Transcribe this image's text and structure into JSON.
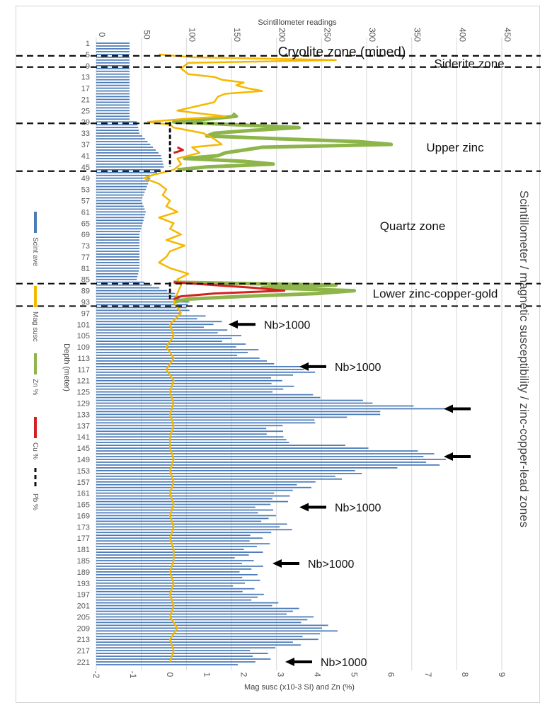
{
  "chart_data": {
    "type": "bar-line-combo",
    "top_axis": {
      "title": "Scintillometer readings",
      "ticks": [
        0,
        50,
        100,
        150,
        200,
        250,
        300,
        350,
        400,
        450
      ],
      "range": [
        0,
        450
      ]
    },
    "bottom_axis": {
      "title": "Mag susc (x10-3 SI) and Zn (%)",
      "ticks": [
        -2,
        -1,
        0,
        1,
        2,
        3,
        4,
        5,
        6,
        7,
        8,
        9
      ],
      "range": [
        -2,
        9
      ]
    },
    "depth_axis": {
      "title": "Depth (meter)",
      "tick_labels": [
        1,
        5,
        9,
        13,
        17,
        21,
        25,
        29,
        33,
        37,
        41,
        45,
        49,
        53,
        57,
        61,
        65,
        69,
        73,
        77,
        81,
        85,
        89,
        93,
        97,
        101,
        105,
        109,
        113,
        117,
        121,
        125,
        129,
        133,
        137,
        141,
        145,
        149,
        153,
        157,
        161,
        165,
        169,
        173,
        177,
        181,
        185,
        189,
        193,
        197,
        201,
        205,
        209,
        213,
        217,
        221
      ],
      "range": [
        1,
        222
      ]
    },
    "legend": [
      {
        "name": "Scint ave",
        "color": "#4a7ab8",
        "style": "bar"
      },
      {
        "name": "Mag susc",
        "color": "#f5b800",
        "style": "line"
      },
      {
        "name": "Zn %",
        "color": "#8db54a",
        "style": "line"
      },
      {
        "name": "Cu %",
        "color": "#d42020",
        "style": "line"
      },
      {
        "name": "Pb %",
        "color": "#111111",
        "style": "dash"
      }
    ],
    "right_title": "Scintillometer / magnetic susceptibility / zinc-copper-lead zones",
    "zones": [
      {
        "label": "Cryolite zone (mined)",
        "from": 1,
        "to": 5
      },
      {
        "label": "Siderite zone",
        "from": 5,
        "to": 9
      },
      {
        "label": "Upper zinc",
        "from": 29,
        "to": 46
      },
      {
        "label": "Quartz zone",
        "from": 46,
        "to": 86
      },
      {
        "label": "Lower zinc-copper-gold",
        "from": 86,
        "to": 94
      }
    ],
    "zone_boundaries": [
      5,
      9,
      29,
      46,
      86,
      94
    ],
    "nb_annotations": [
      {
        "depth": 101,
        "label": "Nb>1000"
      },
      {
        "depth": 116,
        "label": "Nb>1000"
      },
      {
        "depth": 131,
        "label": ""
      },
      {
        "depth": 148,
        "label": ""
      },
      {
        "depth": 166,
        "label": "Nb>1000"
      },
      {
        "depth": 186,
        "label": "Nb>1000"
      },
      {
        "depth": 221,
        "label": "Nb>1000"
      }
    ],
    "scint_ave": {
      "units": "readings",
      "knots": [
        [
          1,
          37
        ],
        [
          28,
          37
        ],
        [
          29,
          45
        ],
        [
          33,
          48
        ],
        [
          37,
          60
        ],
        [
          41,
          72
        ],
        [
          45,
          75
        ],
        [
          49,
          60
        ],
        [
          57,
          50
        ],
        [
          61,
          55
        ],
        [
          69,
          48
        ],
        [
          81,
          48
        ],
        [
          85,
          45
        ],
        [
          88,
          70
        ],
        [
          92,
          105
        ],
        [
          95,
          100
        ],
        [
          97,
          110
        ],
        [
          101,
          130
        ],
        [
          105,
          145
        ],
        [
          109,
          160
        ],
        [
          113,
          170
        ],
        [
          115,
          215
        ],
        [
          117,
          240
        ],
        [
          121,
          200
        ],
        [
          125,
          210
        ],
        [
          127,
          255
        ],
        [
          129,
          305
        ],
        [
          130,
          365
        ],
        [
          131,
          385
        ],
        [
          132,
          320
        ],
        [
          134,
          275
        ],
        [
          137,
          210
        ],
        [
          141,
          195
        ],
        [
          143,
          230
        ],
        [
          145,
          310
        ],
        [
          147,
          375
        ],
        [
          149,
          380
        ],
        [
          151,
          365
        ],
        [
          153,
          300
        ],
        [
          157,
          240
        ],
        [
          161,
          215
        ],
        [
          165,
          195
        ],
        [
          169,
          185
        ],
        [
          173,
          210
        ],
        [
          177,
          175
        ],
        [
          181,
          175
        ],
        [
          185,
          170
        ],
        [
          189,
          175
        ],
        [
          193,
          165
        ],
        [
          197,
          170
        ],
        [
          201,
          200
        ],
        [
          205,
          230
        ],
        [
          209,
          260
        ],
        [
          213,
          240
        ],
        [
          217,
          185
        ],
        [
          221,
          175
        ],
        [
          222,
          170
        ]
      ]
    },
    "mag_susc": {
      "units": "x10-3 SI",
      "points": [
        [
          5,
          -0.3
        ],
        [
          6,
          0.6
        ],
        [
          7,
          4.5
        ],
        [
          8,
          0.5
        ],
        [
          10,
          0.3
        ],
        [
          12,
          0.5
        ],
        [
          13,
          1.2
        ],
        [
          14,
          1.4
        ],
        [
          15,
          2.0
        ],
        [
          16,
          1.8
        ],
        [
          17,
          2.1
        ],
        [
          18,
          2.5
        ],
        [
          19,
          1.5
        ],
        [
          20,
          1.3
        ],
        [
          22,
          1.2
        ],
        [
          25,
          0.2
        ],
        [
          26,
          0.8
        ],
        [
          27,
          1.5
        ],
        [
          28,
          0.3
        ],
        [
          29,
          -0.6
        ],
        [
          30,
          0.0
        ],
        [
          31,
          0.1
        ],
        [
          33,
          0.9
        ],
        [
          35,
          1.2
        ],
        [
          37,
          1.4
        ],
        [
          38,
          0.6
        ],
        [
          40,
          0.8
        ],
        [
          42,
          0.2
        ],
        [
          44,
          0.3
        ],
        [
          46,
          0.1
        ],
        [
          47,
          -0.2
        ],
        [
          48,
          -0.5
        ],
        [
          49,
          -0.7
        ],
        [
          51,
          -0.3
        ],
        [
          53,
          -0.1
        ],
        [
          55,
          -0.2
        ],
        [
          57,
          0.0
        ],
        [
          59,
          -0.1
        ],
        [
          61,
          0.2
        ],
        [
          63,
          -0.3
        ],
        [
          65,
          0.1
        ],
        [
          67,
          0.0
        ],
        [
          69,
          0.3
        ],
        [
          71,
          -0.1
        ],
        [
          73,
          0.4
        ],
        [
          75,
          0.0
        ],
        [
          77,
          -0.1
        ],
        [
          79,
          -0.3
        ],
        [
          81,
          0.0
        ],
        [
          83,
          0.5
        ],
        [
          85,
          0.2
        ],
        [
          87,
          0.3
        ],
        [
          90,
          0.2
        ],
        [
          93,
          0.1
        ],
        [
          97,
          0.3
        ],
        [
          101,
          0.0
        ],
        [
          105,
          0.1
        ],
        [
          109,
          -0.1
        ],
        [
          113,
          0.1
        ],
        [
          117,
          -0.1
        ],
        [
          121,
          0.1
        ],
        [
          125,
          0.0
        ],
        [
          129,
          0.1
        ],
        [
          133,
          0.0
        ],
        [
          137,
          0.1
        ],
        [
          141,
          0.0
        ],
        [
          145,
          0.0
        ],
        [
          149,
          0.1
        ],
        [
          153,
          0.0
        ],
        [
          157,
          0.1
        ],
        [
          161,
          0.0
        ],
        [
          165,
          0.1
        ],
        [
          169,
          0.0
        ],
        [
          173,
          0.1
        ],
        [
          177,
          0.0
        ],
        [
          181,
          0.1
        ],
        [
          185,
          0.1
        ],
        [
          189,
          0.0
        ],
        [
          193,
          0.1
        ],
        [
          197,
          0.0
        ],
        [
          201,
          0.1
        ],
        [
          205,
          0.0
        ],
        [
          209,
          0.2
        ],
        [
          213,
          0.0
        ],
        [
          217,
          0.1
        ],
        [
          221,
          0.0
        ]
      ]
    },
    "zn_pct": {
      "units": "%",
      "points": [
        [
          26,
          1.7
        ],
        [
          27,
          1.8
        ],
        [
          28,
          1.0
        ],
        [
          29,
          0.1
        ],
        [
          30,
          1.8
        ],
        [
          31,
          3.5
        ],
        [
          32,
          2.2
        ],
        [
          33,
          1.2
        ],
        [
          34,
          1.0
        ],
        [
          35,
          3.0
        ],
        [
          36,
          5.1
        ],
        [
          37,
          6.0
        ],
        [
          38,
          2.5
        ],
        [
          39,
          2.0
        ],
        [
          40,
          1.5
        ],
        [
          41,
          1.3
        ],
        [
          42,
          0.4
        ],
        [
          43,
          2.0
        ],
        [
          44,
          2.8
        ],
        [
          45,
          1.0
        ],
        [
          46,
          0.2
        ],
        [
          86,
          0.1
        ],
        [
          87,
          4.5
        ],
        [
          88,
          2.5
        ],
        [
          89,
          5.0
        ],
        [
          90,
          4.0
        ],
        [
          91,
          2.0
        ],
        [
          92,
          0.5
        ],
        [
          93,
          0.1
        ]
      ]
    },
    "cu_pct": {
      "units": "%",
      "points": [
        [
          38,
          0.2
        ],
        [
          39,
          0.35
        ],
        [
          40,
          0.1
        ],
        [
          86,
          0.1
        ],
        [
          87,
          1.2
        ],
        [
          88,
          2.3
        ],
        [
          89,
          3.1
        ],
        [
          90,
          1.2
        ],
        [
          91,
          0.3
        ],
        [
          92,
          0.1
        ]
      ]
    },
    "pb_pct": {
      "units": "%",
      "points": [
        [
          29,
          0.0
        ],
        [
          30,
          0.0
        ],
        [
          35,
          0.0
        ],
        [
          40,
          0.0
        ],
        [
          45,
          0.0
        ],
        [
          86,
          0.0
        ],
        [
          90,
          0.0
        ],
        [
          92,
          0.0
        ]
      ]
    }
  }
}
